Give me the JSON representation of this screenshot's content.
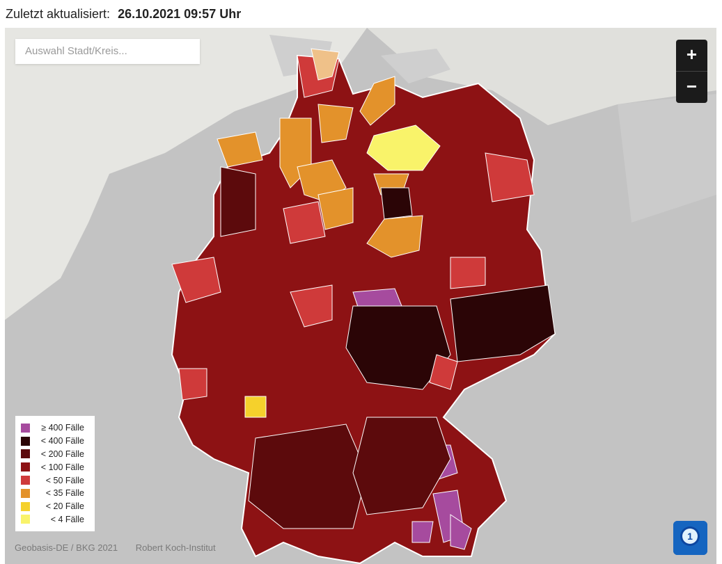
{
  "header": {
    "updated_label": "Zuletzt aktualisiert:",
    "updated_value": "26.10.2021 09:57 Uhr"
  },
  "search": {
    "placeholder": "Auswahl Stadt/Kreis..."
  },
  "zoom": {
    "in_label": "+",
    "out_label": "−"
  },
  "legend": {
    "items": [
      {
        "label": "≥ 400 Fälle",
        "color": "#a64b9e"
      },
      {
        "label": "< 400 Fälle",
        "color": "#2b0506"
      },
      {
        "label": "< 200 Fälle",
        "color": "#5c0a0c"
      },
      {
        "label": "< 100 Fälle",
        "color": "#8d1214"
      },
      {
        "label": "< 50 Fälle",
        "color": "#cf3a3a"
      },
      {
        "label": "< 35 Fälle",
        "color": "#e3922b"
      },
      {
        "label": "< 20 Fälle",
        "color": "#f5d12c"
      },
      {
        "label": "< 4 Fälle",
        "color": "#f9f36a"
      }
    ]
  },
  "credits": {
    "source_1": "Geobasis-DE / BKG 2021",
    "source_2": "Robert Koch-Institut"
  },
  "logo": {
    "icon": "ard-tagesschau-logo",
    "color": "#1565c0"
  }
}
